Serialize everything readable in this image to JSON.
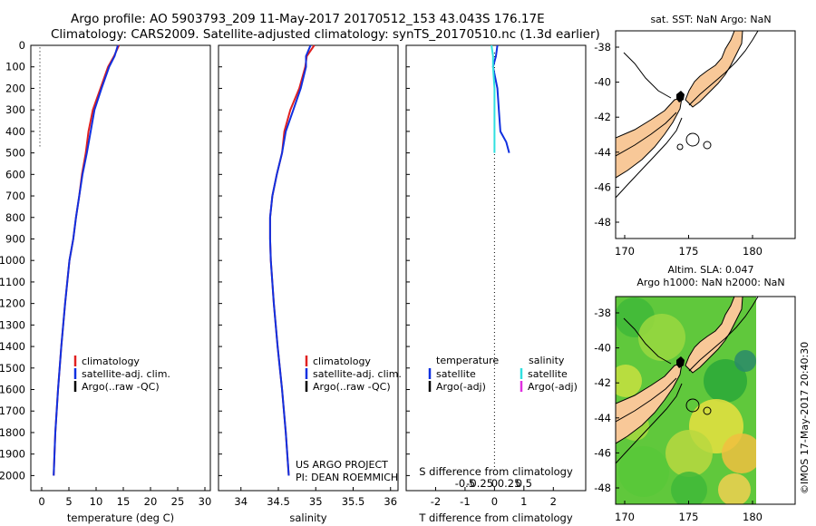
{
  "header": {
    "line1": "Argo profile: AO 5903793_209 11-May-2017 20170512_153 43.043S 176.17E",
    "line2": "Climatology: CARS2009. Satellite-adjusted climatology: synTS_20170510.nc (1.3d earlier)"
  },
  "credits": {
    "project": "US ARGO PROJECT",
    "pi": "PI: DEAN ROEMMICH",
    "stamp": "©IMOS 17-May-2017 20:40:30"
  },
  "colors": {
    "climatology": "#e02020",
    "satellite": "#1030e0",
    "argo": "#000000",
    "sal_satellite": "#30e0e0",
    "sal_argo": "#e030e0",
    "land": "#f8c898"
  },
  "legends": {
    "profile": [
      "climatology",
      "satellite-adj. clim.",
      "Argo(..raw -QC)"
    ],
    "diff_headers": [
      "temperature",
      "salinity"
    ],
    "diff_temp": [
      "satellite",
      "Argo(-adj)"
    ],
    "diff_sal": [
      "satellite",
      "Argo(-adj)"
    ]
  },
  "maps": {
    "sst": {
      "title": "sat. SST: NaN Argo: NaN",
      "lat_ticks": [
        "-38",
        "-40",
        "-42",
        "-44",
        "-46",
        "-48"
      ],
      "lon_ticks": [
        "170",
        "175",
        "180"
      ]
    },
    "sla": {
      "title1": "Altim. SLA: 0.047",
      "title2": "Argo h1000: NaN h2000: NaN",
      "lat_ticks": [
        "-38",
        "-40",
        "-42",
        "-44",
        "-46",
        "-48"
      ],
      "lon_ticks": [
        "170",
        "175",
        "180"
      ]
    }
  },
  "chart_data": [
    {
      "type": "line",
      "name": "temperature",
      "xlabel": "temperature (deg C)",
      "ylabel": "",
      "xlim": [
        -2,
        31
      ],
      "ylim": [
        2070,
        0
      ],
      "xticks": [
        0,
        5,
        10,
        15,
        20,
        25,
        30
      ],
      "yticks": [
        0,
        100,
        200,
        300,
        400,
        500,
        600,
        700,
        800,
        900,
        1000,
        1100,
        1200,
        1300,
        1400,
        1500,
        1600,
        1700,
        1800,
        1900,
        2000
      ],
      "series": [
        {
          "name": "climatology",
          "color": "red",
          "depth": [
            0,
            50,
            100,
            200,
            300,
            400,
            500,
            600,
            700,
            800,
            900,
            1000,
            1200,
            1400,
            1600,
            1800,
            2000
          ],
          "values": [
            14.2,
            13.3,
            12.2,
            10.8,
            9.4,
            8.6,
            8.1,
            7.4,
            6.9,
            6.3,
            5.8,
            5.1,
            4.3,
            3.6,
            3.0,
            2.5,
            2.2
          ]
        },
        {
          "name": "satellite-adj. clim.",
          "color": "blue",
          "depth": [
            0,
            50,
            100,
            200,
            300,
            400,
            500,
            600,
            700,
            800,
            900,
            1000,
            1200,
            1400,
            1600,
            1800,
            2000
          ],
          "values": [
            14.0,
            13.4,
            12.4,
            11.0,
            9.7,
            9.0,
            8.3,
            7.5,
            6.9,
            6.3,
            5.8,
            5.1,
            4.3,
            3.6,
            3.0,
            2.5,
            2.2
          ]
        },
        {
          "name": "Argo(..raw -QC)",
          "color": "black",
          "depth": [],
          "values": []
        }
      ],
      "annotations": {
        "dotted_depth_marks": [
          10,
          470
        ]
      }
    },
    {
      "type": "line",
      "name": "salinity",
      "xlabel": "salinity",
      "xlim": [
        33.7,
        36.1
      ],
      "ylim": [
        2070,
        0
      ],
      "xticks": [
        34,
        34.5,
        35,
        35.5,
        36
      ],
      "series": [
        {
          "name": "climatology",
          "color": "red",
          "depth": [
            0,
            50,
            100,
            200,
            300,
            400,
            500,
            600,
            700,
            800,
            900,
            1000,
            1200,
            1400,
            1600,
            1800,
            2000
          ],
          "values": [
            34.98,
            34.88,
            34.86,
            34.78,
            34.66,
            34.58,
            34.55,
            34.48,
            34.42,
            34.39,
            34.39,
            34.4,
            34.44,
            34.49,
            34.55,
            34.6,
            34.64
          ]
        },
        {
          "name": "satellite-adj. clim.",
          "color": "blue",
          "depth": [
            0,
            50,
            100,
            200,
            300,
            400,
            500,
            600,
            700,
            800,
            900,
            1000,
            1200,
            1400,
            1600,
            1800,
            2000
          ],
          "values": [
            34.93,
            34.87,
            34.87,
            34.8,
            34.7,
            34.6,
            34.55,
            34.48,
            34.42,
            34.39,
            34.39,
            34.4,
            34.44,
            34.49,
            34.55,
            34.6,
            34.64
          ]
        },
        {
          "name": "Argo(..raw -QC)",
          "color": "black",
          "depth": [],
          "values": []
        }
      ]
    },
    {
      "type": "line",
      "name": "difference",
      "xlabel": "T difference from climatology",
      "xlabel2": "S difference from climatology",
      "xlim": [
        -3,
        3.1
      ],
      "ylim": [
        2070,
        0
      ],
      "xticks": [
        -2,
        -1,
        0,
        1,
        2
      ],
      "xticks_top_values": [
        -1,
        -0.5,
        0,
        0.5,
        1
      ],
      "xticks_top_labels": [
        "-0.5",
        "-0.25",
        "0",
        "0.25",
        "0.5"
      ],
      "series": [
        {
          "name": "temperature satellite",
          "color": "blue",
          "depth": [
            0,
            50,
            100,
            200,
            300,
            400,
            450,
            500
          ],
          "values": [
            0.1,
            0.05,
            -0.05,
            0.1,
            0.15,
            0.2,
            0.4,
            0.5
          ]
        },
        {
          "name": "salinity satellite",
          "color": "cyan",
          "depth": [
            0,
            50,
            100,
            200,
            300,
            400,
            500
          ],
          "values": [
            -0.1,
            -0.05,
            -0.05,
            0.0,
            0.0,
            0.0,
            0.0
          ]
        }
      ]
    }
  ]
}
